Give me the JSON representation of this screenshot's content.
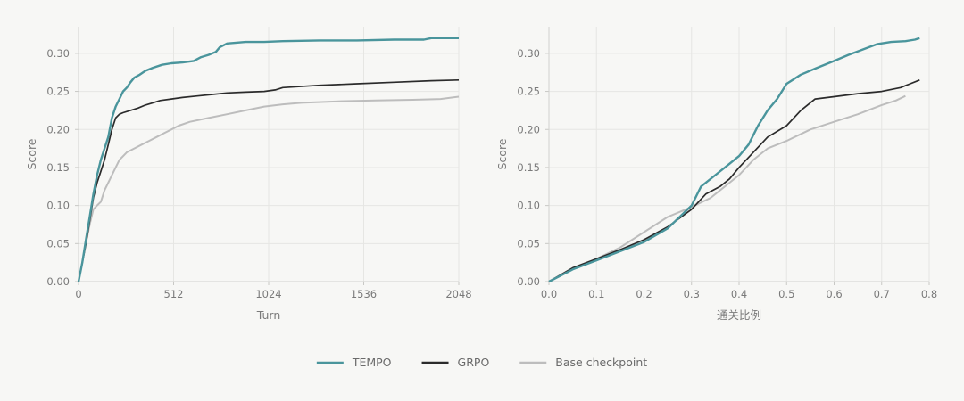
{
  "chart_data": [
    {
      "type": "line",
      "xlabel": "Turn",
      "ylabel": "Score",
      "xlim": [
        0,
        2048
      ],
      "ylim": [
        0,
        0.335
      ],
      "xticks": [
        0,
        512,
        1024,
        1536,
        2048
      ],
      "xtick_labels": [
        "0",
        "512",
        "1024",
        "1536",
        "2048"
      ],
      "yticks": [
        0,
        0.05,
        0.1,
        0.15,
        0.2,
        0.25,
        0.3
      ],
      "ytick_labels": [
        "0.00",
        "0.05",
        "0.10",
        "0.15",
        "0.20",
        "0.25",
        "0.30"
      ],
      "grid": true,
      "series": [
        {
          "name": "TEMPO",
          "color": "#4a959c",
          "x": [
            0,
            20,
            40,
            60,
            80,
            100,
            120,
            140,
            160,
            180,
            200,
            220,
            240,
            260,
            280,
            300,
            330,
            360,
            400,
            450,
            500,
            560,
            620,
            660,
            700,
            740,
            760,
            800,
            900,
            1000,
            1100,
            1300,
            1500,
            1700,
            1860,
            1900,
            2048
          ],
          "y": [
            0,
            0.025,
            0.055,
            0.085,
            0.115,
            0.14,
            0.16,
            0.175,
            0.19,
            0.215,
            0.23,
            0.24,
            0.25,
            0.255,
            0.262,
            0.268,
            0.272,
            0.277,
            0.281,
            0.285,
            0.287,
            0.288,
            0.29,
            0.295,
            0.298,
            0.302,
            0.308,
            0.313,
            0.315,
            0.315,
            0.316,
            0.317,
            0.317,
            0.318,
            0.318,
            0.32,
            0.32
          ]
        },
        {
          "name": "GRPO",
          "color": "#2b2b2b",
          "x": [
            0,
            20,
            40,
            60,
            80,
            100,
            120,
            140,
            160,
            180,
            200,
            220,
            240,
            280,
            320,
            360,
            400,
            440,
            500,
            560,
            640,
            720,
            800,
            900,
            1000,
            1060,
            1100,
            1300,
            1400,
            1500,
            1700,
            1900,
            2048
          ],
          "y": [
            0,
            0.025,
            0.05,
            0.08,
            0.11,
            0.13,
            0.145,
            0.16,
            0.18,
            0.2,
            0.215,
            0.22,
            0.222,
            0.225,
            0.228,
            0.232,
            0.235,
            0.238,
            0.24,
            0.242,
            0.244,
            0.246,
            0.248,
            0.249,
            0.25,
            0.252,
            0.255,
            0.258,
            0.259,
            0.26,
            0.262,
            0.264,
            0.265
          ]
        },
        {
          "name": "Base checkpoint",
          "color": "#bdbdbd",
          "x": [
            0,
            20,
            40,
            60,
            80,
            100,
            120,
            140,
            160,
            180,
            200,
            220,
            260,
            300,
            340,
            380,
            420,
            460,
            500,
            540,
            600,
            700,
            800,
            900,
            1000,
            1100,
            1200,
            1400,
            1600,
            1800,
            1950,
            2048
          ],
          "y": [
            0,
            0.025,
            0.05,
            0.075,
            0.095,
            0.1,
            0.105,
            0.12,
            0.13,
            0.14,
            0.15,
            0.16,
            0.17,
            0.175,
            0.18,
            0.185,
            0.19,
            0.195,
            0.2,
            0.205,
            0.21,
            0.215,
            0.22,
            0.225,
            0.23,
            0.233,
            0.235,
            0.237,
            0.238,
            0.239,
            0.24,
            0.243
          ]
        }
      ]
    },
    {
      "type": "line",
      "xlabel": "通关比例",
      "ylabel": "Score",
      "xlim": [
        0,
        0.8
      ],
      "ylim": [
        0,
        0.335
      ],
      "xticks": [
        0,
        0.1,
        0.2,
        0.3,
        0.4,
        0.5,
        0.6,
        0.7,
        0.8
      ],
      "xtick_labels": [
        "0.0",
        "0.1",
        "0.2",
        "0.3",
        "0.4",
        "0.5",
        "0.6",
        "0.7",
        "0.8"
      ],
      "yticks": [
        0,
        0.05,
        0.1,
        0.15,
        0.2,
        0.25,
        0.3
      ],
      "ytick_labels": [
        "0.00",
        "0.05",
        "0.10",
        "0.15",
        "0.20",
        "0.25",
        "0.30"
      ],
      "grid": true,
      "series": [
        {
          "name": "TEMPO",
          "color": "#4a959c",
          "x": [
            0,
            0.025,
            0.05,
            0.1,
            0.15,
            0.2,
            0.25,
            0.3,
            0.32,
            0.35,
            0.38,
            0.4,
            0.42,
            0.44,
            0.46,
            0.48,
            0.5,
            0.53,
            0.56,
            0.6,
            0.63,
            0.66,
            0.69,
            0.72,
            0.75,
            0.77,
            0.78
          ],
          "y": [
            0,
            0.008,
            0.016,
            0.028,
            0.04,
            0.052,
            0.07,
            0.1,
            0.125,
            0.14,
            0.155,
            0.165,
            0.18,
            0.205,
            0.225,
            0.24,
            0.26,
            0.272,
            0.28,
            0.29,
            0.298,
            0.305,
            0.312,
            0.315,
            0.316,
            0.318,
            0.32
          ]
        },
        {
          "name": "GRPO",
          "color": "#2b2b2b",
          "x": [
            0,
            0.025,
            0.05,
            0.1,
            0.15,
            0.2,
            0.25,
            0.3,
            0.33,
            0.36,
            0.38,
            0.4,
            0.43,
            0.46,
            0.5,
            0.53,
            0.56,
            0.6,
            0.65,
            0.7,
            0.74,
            0.76,
            0.78
          ],
          "y": [
            0,
            0.009,
            0.018,
            0.03,
            0.042,
            0.055,
            0.072,
            0.095,
            0.115,
            0.125,
            0.135,
            0.15,
            0.17,
            0.19,
            0.205,
            0.225,
            0.24,
            0.243,
            0.247,
            0.25,
            0.255,
            0.26,
            0.265
          ]
        },
        {
          "name": "Base checkpoint",
          "color": "#bdbdbd",
          "x": [
            0,
            0.025,
            0.05,
            0.1,
            0.15,
            0.2,
            0.25,
            0.3,
            0.34,
            0.37,
            0.4,
            0.43,
            0.46,
            0.5,
            0.55,
            0.6,
            0.65,
            0.7,
            0.73,
            0.75
          ],
          "y": [
            0,
            0.009,
            0.018,
            0.03,
            0.045,
            0.065,
            0.085,
            0.098,
            0.11,
            0.125,
            0.14,
            0.16,
            0.175,
            0.185,
            0.2,
            0.21,
            0.22,
            0.232,
            0.238,
            0.244
          ]
        }
      ]
    }
  ],
  "legend": {
    "placement": "bottom-center",
    "items": [
      {
        "label": "TEMPO",
        "color": "#4a959c"
      },
      {
        "label": "GRPO",
        "color": "#2b2b2b"
      },
      {
        "label": "Base checkpoint",
        "color": "#bdbdbd"
      }
    ]
  }
}
